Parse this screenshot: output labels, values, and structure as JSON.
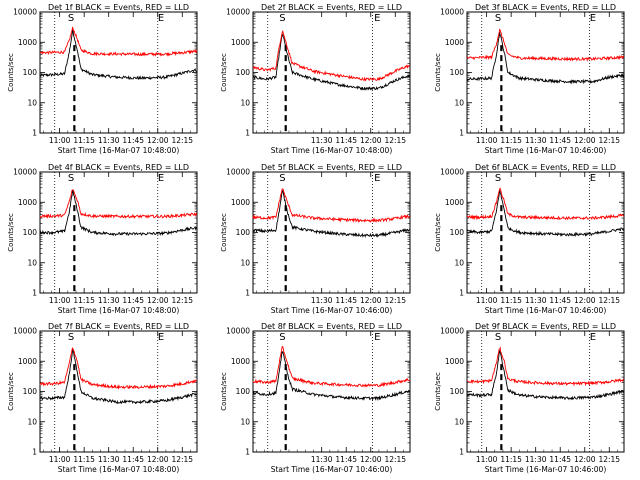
{
  "colors": {
    "events": "#000000",
    "lld": "#ff0000",
    "background": "#ffffff"
  },
  "chart_data": [
    {
      "type": "line",
      "scale_y": "log",
      "title": "Det 1f BLACK = Events, RED = LLD",
      "xlabel": "Start Time (16-Mar-07 10:48:00)",
      "ylabel": "Counts/sec",
      "xlim": [
        "10:48",
        "12:24"
      ],
      "ylim": [
        1,
        10000
      ],
      "x_ticks": [
        "11:00",
        "11:15",
        "11:30",
        "11:45",
        "12:00",
        "12:15"
      ],
      "y_ticks": [
        "1",
        "10",
        "100",
        "1000",
        "10000"
      ],
      "markers": [
        {
          "label": "S",
          "time": "11:07"
        },
        {
          "label": "E",
          "time": "12:02"
        }
      ],
      "vlines_dotted": [
        "10:57",
        "12:00"
      ],
      "vline_dashed": "11:09",
      "peak_time": "11:08",
      "series": [
        {
          "name": "Events",
          "color": "#000000",
          "x": [
            "10:48",
            "10:56",
            "11:03",
            "11:06",
            "11:08",
            "11:11",
            "11:13",
            "11:20",
            "11:35",
            "11:50",
            "12:05",
            "12:15",
            "12:22"
          ],
          "values": [
            80,
            85,
            90,
            500,
            2500,
            500,
            130,
            85,
            70,
            65,
            70,
            95,
            120
          ]
        },
        {
          "name": "LLD",
          "color": "#ff0000",
          "x": [
            "10:48",
            "10:56",
            "11:03",
            "11:06",
            "11:08",
            "11:11",
            "11:13",
            "11:20",
            "11:35",
            "11:50",
            "12:05",
            "12:15",
            "12:22"
          ],
          "values": [
            450,
            460,
            470,
            1200,
            3000,
            1200,
            550,
            420,
            410,
            400,
            410,
            450,
            500
          ]
        }
      ]
    },
    {
      "type": "line",
      "scale_y": "log",
      "title": "Det 2f BLACK = Events, RED = LLD",
      "xlabel": "Start Time (16-Mar-07 10:48:00)",
      "ylabel": "Counts/sec",
      "xlim": [
        "10:48",
        "12:24"
      ],
      "ylim": [
        1,
        10000
      ],
      "x_ticks": [
        "11:30",
        "11:45",
        "12:00",
        "12:15"
      ],
      "y_ticks": [
        "1",
        "10",
        "100",
        "1000",
        "10000"
      ],
      "markers": [
        {
          "label": "S",
          "time": "11:06"
        },
        {
          "label": "E",
          "time": "12:04"
        }
      ],
      "vlines_dotted": [
        "10:57",
        "12:01"
      ],
      "vline_dashed": "11:08",
      "peak_time": "11:06",
      "series": [
        {
          "name": "Events",
          "color": "#000000",
          "x": [
            "10:48",
            "10:56",
            "11:02",
            "11:04",
            "11:06",
            "11:09",
            "11:12",
            "11:25",
            "11:40",
            "11:55",
            "12:05",
            "12:15",
            "12:22"
          ],
          "values": [
            70,
            60,
            70,
            400,
            2000,
            400,
            100,
            60,
            40,
            30,
            30,
            55,
            75
          ]
        },
        {
          "name": "LLD",
          "color": "#ff0000",
          "x": [
            "10:48",
            "10:56",
            "11:02",
            "11:04",
            "11:06",
            "11:09",
            "11:12",
            "11:25",
            "11:40",
            "11:55",
            "12:05",
            "12:15",
            "12:22"
          ],
          "values": [
            150,
            120,
            140,
            700,
            2500,
            700,
            200,
            110,
            80,
            60,
            60,
            110,
            160
          ]
        }
      ]
    },
    {
      "type": "line",
      "scale_y": "log",
      "title": "Det 3f BLACK = Events, RED = LLD",
      "xlabel": "Start Time (16-Mar-07 10:46:00)",
      "ylabel": "Counts/sec",
      "xlim": [
        "10:48",
        "12:24"
      ],
      "ylim": [
        1,
        10000
      ],
      "x_ticks": [
        "11:00",
        "11:15",
        "11:30",
        "11:45",
        "12:00",
        "12:15"
      ],
      "y_ticks": [
        "1",
        "10",
        "100",
        "1000",
        "10000"
      ],
      "markers": [
        {
          "label": "S",
          "time": "11:07"
        },
        {
          "label": "E",
          "time": "12:05"
        }
      ],
      "vlines_dotted": [
        "10:57",
        "12:03"
      ],
      "vline_dashed": "11:09",
      "peak_time": "11:08",
      "series": [
        {
          "name": "Events",
          "color": "#000000",
          "x": [
            "10:48",
            "10:56",
            "11:03",
            "11:06",
            "11:08",
            "11:11",
            "11:13",
            "11:20",
            "11:35",
            "11:50",
            "12:05",
            "12:15",
            "12:22"
          ],
          "values": [
            60,
            62,
            65,
            400,
            2200,
            400,
            100,
            65,
            55,
            50,
            50,
            70,
            80
          ]
        },
        {
          "name": "LLD",
          "color": "#ff0000",
          "x": [
            "10:48",
            "10:56",
            "11:03",
            "11:06",
            "11:08",
            "11:11",
            "11:13",
            "11:20",
            "11:35",
            "11:50",
            "12:05",
            "12:15",
            "12:22"
          ],
          "values": [
            300,
            310,
            320,
            900,
            2600,
            900,
            380,
            300,
            290,
            280,
            280,
            300,
            320
          ]
        }
      ]
    },
    {
      "type": "line",
      "scale_y": "log",
      "title": "Det 4f BLACK = Events, RED = LLD",
      "xlabel": "Start Time (16-Mar-07 10:48:00)",
      "ylabel": "Counts/sec",
      "xlim": [
        "10:48",
        "12:24"
      ],
      "ylim": [
        1,
        10000
      ],
      "x_ticks": [
        "11:00",
        "11:15",
        "11:30",
        "11:45",
        "12:00",
        "12:15"
      ],
      "y_ticks": [
        "1",
        "10",
        "100",
        "1000",
        "10000"
      ],
      "markers": [
        {
          "label": "S",
          "time": "11:07"
        },
        {
          "label": "E",
          "time": "12:02"
        }
      ],
      "vlines_dotted": [
        "10:57",
        "12:00"
      ],
      "vline_dashed": "11:09",
      "peak_time": "11:08",
      "series": [
        {
          "name": "Events",
          "color": "#000000",
          "x": [
            "10:48",
            "10:56",
            "11:03",
            "11:06",
            "11:08",
            "11:11",
            "11:13",
            "11:20",
            "11:35",
            "11:50",
            "12:05",
            "12:15",
            "12:22"
          ],
          "values": [
            100,
            100,
            110,
            500,
            2500,
            500,
            150,
            100,
            90,
            90,
            95,
            120,
            140
          ]
        },
        {
          "name": "LLD",
          "color": "#ff0000",
          "x": [
            "10:48",
            "10:56",
            "11:03",
            "11:06",
            "11:08",
            "11:11",
            "11:13",
            "11:20",
            "11:35",
            "11:50",
            "12:05",
            "12:15",
            "12:22"
          ],
          "values": [
            350,
            350,
            370,
            1100,
            2800,
            1100,
            420,
            350,
            340,
            340,
            340,
            370,
            400
          ]
        }
      ]
    },
    {
      "type": "line",
      "scale_y": "log",
      "title": "Det 5f BLACK = Events, RED = LLD",
      "xlabel": "Start Time (16-Mar-07 10:46:00)",
      "ylabel": "Counts/sec",
      "xlim": [
        "10:48",
        "12:24"
      ],
      "ylim": [
        1,
        10000
      ],
      "x_ticks": [
        "11:30",
        "11:45",
        "12:00",
        "12:15"
      ],
      "y_ticks": [
        "1",
        "10",
        "100",
        "1000",
        "10000"
      ],
      "markers": [
        {
          "label": "S",
          "time": "11:06"
        },
        {
          "label": "E",
          "time": "12:04"
        }
      ],
      "vlines_dotted": [
        "10:57",
        "12:01"
      ],
      "vline_dashed": "11:08",
      "peak_time": "11:06",
      "series": [
        {
          "name": "Events",
          "color": "#000000",
          "x": [
            "10:48",
            "10:56",
            "11:02",
            "11:04",
            "11:06",
            "11:09",
            "11:12",
            "11:25",
            "11:40",
            "11:55",
            "12:05",
            "12:15",
            "12:22"
          ],
          "values": [
            120,
            110,
            120,
            500,
            2500,
            500,
            150,
            110,
            90,
            80,
            80,
            100,
            120
          ]
        },
        {
          "name": "LLD",
          "color": "#ff0000",
          "x": [
            "10:48",
            "10:56",
            "11:02",
            "11:04",
            "11:06",
            "11:09",
            "11:12",
            "11:25",
            "11:40",
            "11:55",
            "12:05",
            "12:15",
            "12:22"
          ],
          "values": [
            320,
            300,
            320,
            1000,
            3000,
            1000,
            380,
            300,
            270,
            250,
            250,
            290,
            340
          ]
        }
      ]
    },
    {
      "type": "line",
      "scale_y": "log",
      "title": "Det 6f BLACK = Events, RED = LLD",
      "xlabel": "Start Time (16-Mar-07 10:46:00)",
      "ylabel": "Counts/sec",
      "xlim": [
        "10:48",
        "12:24"
      ],
      "ylim": [
        1,
        10000
      ],
      "x_ticks": [
        "11:00",
        "11:15",
        "11:30",
        "11:45",
        "12:00",
        "12:15"
      ],
      "y_ticks": [
        "1",
        "10",
        "100",
        "1000",
        "10000"
      ],
      "markers": [
        {
          "label": "S",
          "time": "11:07"
        },
        {
          "label": "E",
          "time": "12:05"
        }
      ],
      "vlines_dotted": [
        "10:57",
        "12:03"
      ],
      "vline_dashed": "11:09",
      "peak_time": "11:08",
      "series": [
        {
          "name": "Events",
          "color": "#000000",
          "x": [
            "10:48",
            "10:56",
            "11:03",
            "11:06",
            "11:08",
            "11:11",
            "11:13",
            "11:20",
            "11:35",
            "11:50",
            "12:05",
            "12:15",
            "12:22"
          ],
          "values": [
            110,
            100,
            110,
            500,
            2500,
            500,
            140,
            100,
            90,
            85,
            90,
            110,
            130
          ]
        },
        {
          "name": "LLD",
          "color": "#ff0000",
          "x": [
            "10:48",
            "10:56",
            "11:03",
            "11:06",
            "11:08",
            "11:11",
            "11:13",
            "11:20",
            "11:35",
            "11:50",
            "12:05",
            "12:15",
            "12:22"
          ],
          "values": [
            330,
            320,
            340,
            1000,
            3000,
            1000,
            400,
            320,
            310,
            300,
            300,
            330,
            360
          ]
        }
      ]
    },
    {
      "type": "line",
      "scale_y": "log",
      "title": "Det 7f BLACK = Events, RED = LLD",
      "xlabel": "Start Time (16-Mar-07 10:48:00)",
      "ylabel": "Counts/sec",
      "xlim": [
        "10:48",
        "12:24"
      ],
      "ylim": [
        1,
        10000
      ],
      "x_ticks": [
        "11:00",
        "11:15",
        "11:30",
        "11:45",
        "12:00",
        "12:15"
      ],
      "y_ticks": [
        "1",
        "10",
        "100",
        "1000",
        "10000"
      ],
      "markers": [
        {
          "label": "S",
          "time": "11:07"
        },
        {
          "label": "E",
          "time": "12:02"
        }
      ],
      "vlines_dotted": [
        "10:57",
        "12:00"
      ],
      "vline_dashed": "11:09",
      "peak_time": "11:08",
      "series": [
        {
          "name": "Events",
          "color": "#000000",
          "x": [
            "10:48",
            "10:56",
            "11:03",
            "11:06",
            "11:08",
            "11:11",
            "11:13",
            "11:20",
            "11:35",
            "11:50",
            "12:05",
            "12:15",
            "12:22"
          ],
          "values": [
            60,
            60,
            65,
            400,
            2500,
            400,
            100,
            60,
            45,
            45,
            50,
            65,
            80
          ]
        },
        {
          "name": "LLD",
          "color": "#ff0000",
          "x": [
            "10:48",
            "10:56",
            "11:03",
            "11:06",
            "11:08",
            "11:11",
            "11:13",
            "11:20",
            "11:35",
            "11:50",
            "12:05",
            "12:15",
            "12:22"
          ],
          "values": [
            180,
            180,
            200,
            900,
            3000,
            900,
            250,
            170,
            140,
            140,
            150,
            180,
            220
          ]
        }
      ]
    },
    {
      "type": "line",
      "scale_y": "log",
      "title": "Det 8f BLACK = Events, RED = LLD",
      "xlabel": "Start Time (16-Mar-07 10:46:00)",
      "ylabel": "Counts/sec",
      "xlim": [
        "10:48",
        "12:24"
      ],
      "ylim": [
        1,
        10000
      ],
      "x_ticks": [
        "11:30",
        "11:45",
        "12:00",
        "12:15"
      ],
      "y_ticks": [
        "1",
        "10",
        "100",
        "1000",
        "10000"
      ],
      "markers": [
        {
          "label": "S",
          "time": "11:06"
        },
        {
          "label": "E",
          "time": "12:04"
        }
      ],
      "vlines_dotted": [
        "10:57",
        "12:01"
      ],
      "vline_dashed": "11:08",
      "peak_time": "11:06",
      "series": [
        {
          "name": "Events",
          "color": "#000000",
          "x": [
            "10:48",
            "10:56",
            "11:02",
            "11:04",
            "11:06",
            "11:09",
            "11:12",
            "11:25",
            "11:40",
            "11:55",
            "12:05",
            "12:15",
            "12:22"
          ],
          "values": [
            90,
            80,
            90,
            400,
            2500,
            400,
            120,
            80,
            65,
            60,
            60,
            80,
            100
          ]
        },
        {
          "name": "LLD",
          "color": "#ff0000",
          "x": [
            "10:48",
            "10:56",
            "11:02",
            "11:04",
            "11:06",
            "11:09",
            "11:12",
            "11:25",
            "11:40",
            "11:55",
            "12:05",
            "12:15",
            "12:22"
          ],
          "values": [
            220,
            200,
            220,
            900,
            3000,
            900,
            270,
            190,
            170,
            160,
            160,
            200,
            240
          ]
        }
      ]
    },
    {
      "type": "line",
      "scale_y": "log",
      "title": "Det 9f BLACK = Events, RED = LLD",
      "xlabel": "Start Time (16-Mar-07 10:46:00)",
      "ylabel": "Counts/sec",
      "xlim": [
        "10:48",
        "12:24"
      ],
      "ylim": [
        1,
        10000
      ],
      "x_ticks": [
        "11:00",
        "11:15",
        "11:30",
        "11:45",
        "12:00",
        "12:15"
      ],
      "y_ticks": [
        "1",
        "10",
        "100",
        "1000",
        "10000"
      ],
      "markers": [
        {
          "label": "S",
          "time": "11:07"
        },
        {
          "label": "E",
          "time": "12:05"
        }
      ],
      "vlines_dotted": [
        "10:57",
        "12:03"
      ],
      "vline_dashed": "11:09",
      "peak_time": "11:08",
      "series": [
        {
          "name": "Events",
          "color": "#000000",
          "x": [
            "10:48",
            "10:56",
            "11:03",
            "11:06",
            "11:08",
            "11:11",
            "11:13",
            "11:20",
            "11:35",
            "11:50",
            "12:05",
            "12:15",
            "12:22"
          ],
          "values": [
            80,
            75,
            80,
            400,
            2300,
            400,
            110,
            75,
            65,
            60,
            65,
            80,
            100
          ]
        },
        {
          "name": "LLD",
          "color": "#ff0000",
          "x": [
            "10:48",
            "10:56",
            "11:03",
            "11:06",
            "11:08",
            "11:11",
            "11:13",
            "11:20",
            "11:35",
            "11:50",
            "12:05",
            "12:15",
            "12:22"
          ],
          "values": [
            220,
            210,
            230,
            900,
            2800,
            900,
            260,
            210,
            190,
            180,
            190,
            210,
            240
          ]
        }
      ]
    }
  ]
}
